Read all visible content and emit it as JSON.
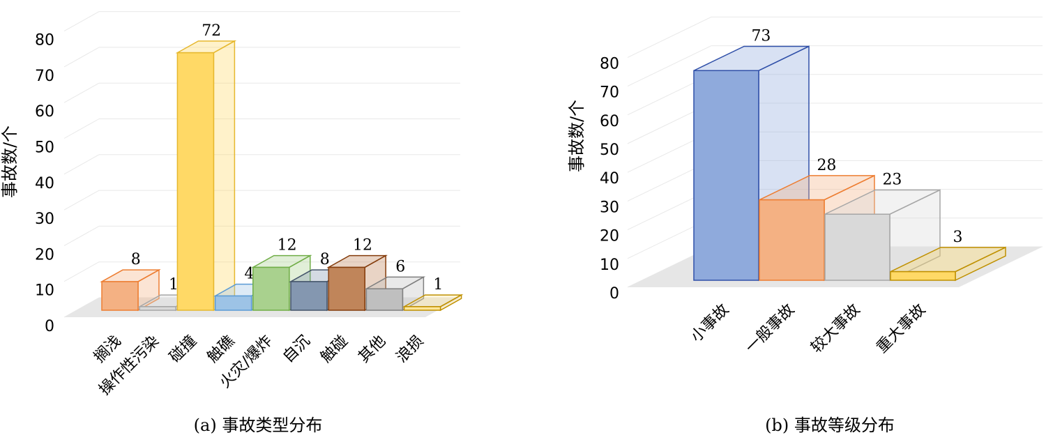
{
  "chart_data": [
    {
      "type": "bar",
      "caption": "(a) 事故类型分布",
      "ylabel": "事故数/个",
      "ylim": [
        0,
        80
      ],
      "yticks": [
        "0",
        "10",
        "20",
        "30",
        "40",
        "50",
        "60",
        "70",
        "80"
      ],
      "categories": [
        "搁浅",
        "操作性污染",
        "碰撞",
        "触礁",
        "火灾/爆炸",
        "自沉",
        "触碰",
        "其他",
        "浪损"
      ],
      "values": [
        8,
        1,
        72,
        4,
        12,
        8,
        12,
        6,
        1
      ],
      "colors": [
        "#F4B183",
        "#D9D9D9",
        "#FFD966",
        "#9DC3E6",
        "#A9D18E",
        "#8497B0",
        "#C0855A",
        "#BFBFBF",
        "#FFE699"
      ],
      "edge_colors": [
        "#ED7D31",
        "#A6A6A6",
        "#E6B82E",
        "#5B9BD5",
        "#70AD47",
        "#44546A",
        "#843C0C",
        "#7F7F7F",
        "#BF9000"
      ],
      "grid": true
    },
    {
      "type": "bar",
      "caption": "(b) 事故等级分布",
      "ylabel": "事故数/个",
      "ylim": [
        0,
        80
      ],
      "yticks": [
        "0",
        "10",
        "20",
        "30",
        "40",
        "50",
        "60",
        "70",
        "80"
      ],
      "categories": [
        "小事故",
        "一般事故",
        "较大事故",
        "重大事故"
      ],
      "values": [
        73,
        28,
        23,
        3
      ],
      "colors": [
        "#8FAADC",
        "#F4B183",
        "#D9D9D9",
        "#FFD966"
      ],
      "edge_colors": [
        "#2F4FA8",
        "#ED7D31",
        "#A6A6A6",
        "#BF9000"
      ],
      "grid": true
    }
  ]
}
